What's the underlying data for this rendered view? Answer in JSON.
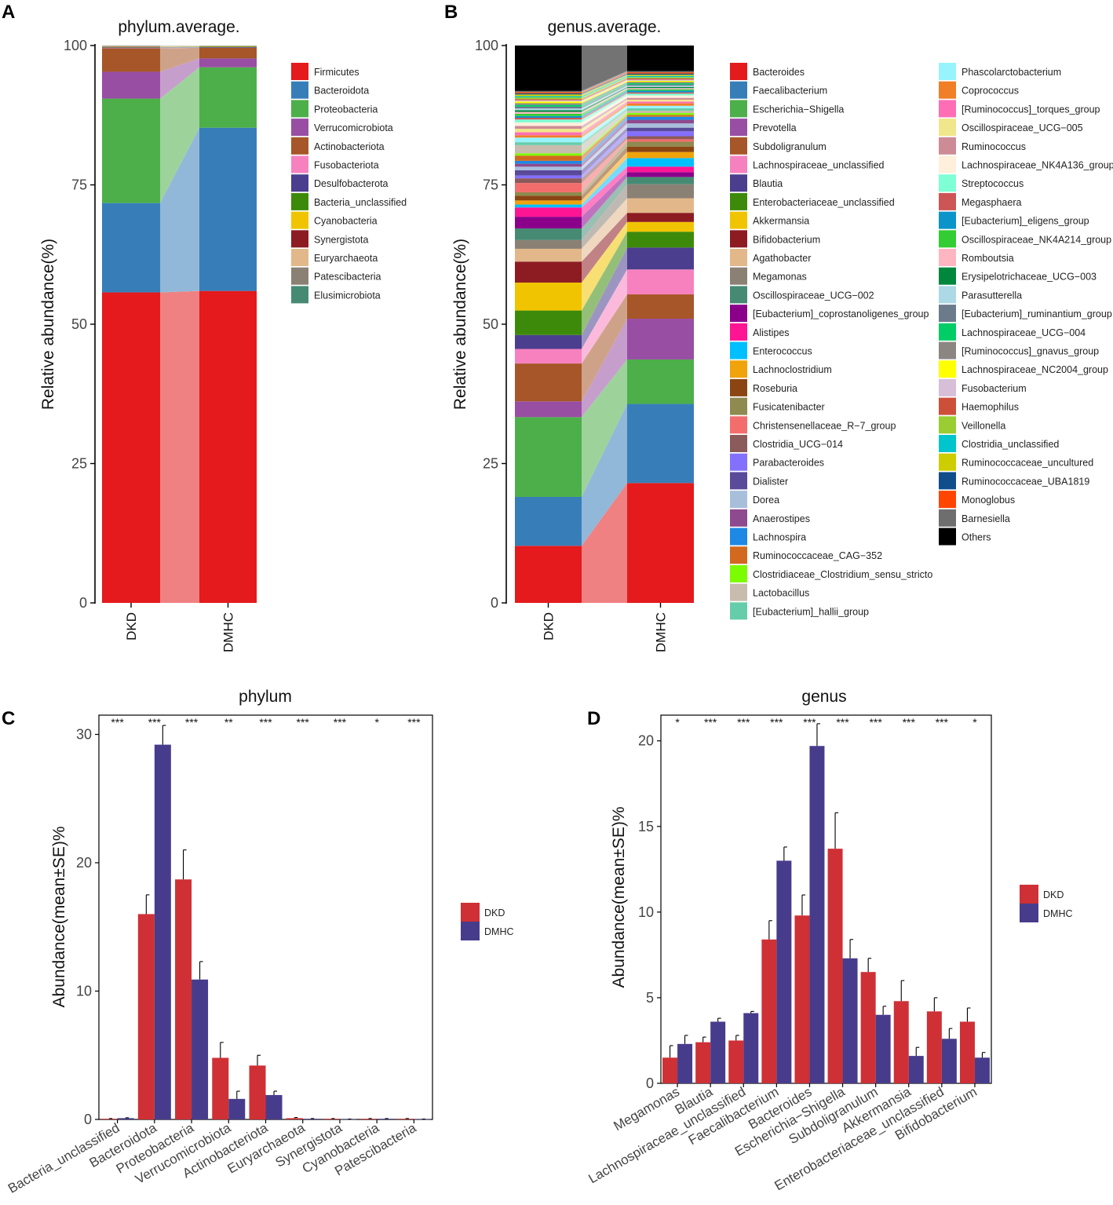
{
  "figure": {
    "panels": [
      "A",
      "B",
      "C",
      "D"
    ],
    "colors": {
      "DKD": "#cf3035",
      "DMHC": "#473c8c",
      "Others": "#000000"
    }
  },
  "chart_data": [
    {
      "panel": "A",
      "type": "bar",
      "subtype": "stacked-100-percent",
      "title": "phylum.average.",
      "ylabel": "Relative abundance(%)",
      "xlabel": "",
      "ylim": [
        0,
        100
      ],
      "yticks": [
        0,
        25,
        50,
        75,
        100
      ],
      "categories": [
        "DKD",
        "DMHC"
      ],
      "series": [
        {
          "name": "Firmicutes",
          "color": "#e41a1c",
          "values": [
            55.6,
            55.8
          ]
        },
        {
          "name": "Bacteroidota",
          "color": "#377eb8",
          "values": [
            16.0,
            29.2
          ]
        },
        {
          "name": "Proteobacteria",
          "color": "#4daf4a",
          "values": [
            18.7,
            10.8
          ]
        },
        {
          "name": "Verrucomicrobiota",
          "color": "#984ea3",
          "values": [
            4.8,
            1.6
          ]
        },
        {
          "name": "Actinobacteriota",
          "color": "#a65628",
          "values": [
            4.2,
            1.9
          ]
        },
        {
          "name": "Fusobacteriota",
          "color": "#f781bf",
          "values": [
            0.05,
            0.02
          ]
        },
        {
          "name": "Desulfobacterota",
          "color": "#4b3e8e",
          "values": [
            0.1,
            0.1
          ]
        },
        {
          "name": "Bacteria_unclassified",
          "color": "#3d8a0a",
          "values": [
            0.05,
            0.1
          ]
        },
        {
          "name": "Cyanobacteria",
          "color": "#f0c400",
          "values": [
            0.05,
            0.05
          ]
        },
        {
          "name": "Synergistota",
          "color": "#8c1c22",
          "values": [
            0.05,
            0.02
          ]
        },
        {
          "name": "Euryarchaeota",
          "color": "#e2b88a",
          "values": [
            0.1,
            0.05
          ]
        },
        {
          "name": "Patescibacteria",
          "color": "#8b8074",
          "values": [
            0.05,
            0.02
          ]
        },
        {
          "name": "Elusimicrobiota",
          "color": "#478a74",
          "values": [
            0.05,
            0.04
          ]
        }
      ]
    },
    {
      "panel": "B",
      "type": "bar",
      "subtype": "stacked-100-percent",
      "title": "genus.average.",
      "ylabel": "Relative abundance(%)",
      "xlabel": "",
      "ylim": [
        0,
        100
      ],
      "yticks": [
        0,
        25,
        50,
        75,
        100
      ],
      "categories": [
        "DKD",
        "DMHC"
      ],
      "series": [
        {
          "name": "Bacteroides",
          "color": "#e41a1c",
          "values": [
            9.8,
            19.7
          ]
        },
        {
          "name": "Faecalibacterium",
          "color": "#377eb8",
          "values": [
            8.4,
            13.0
          ]
        },
        {
          "name": "Escherichia−Shigella",
          "color": "#4daf4a",
          "values": [
            13.7,
            7.3
          ]
        },
        {
          "name": "Prevotella",
          "color": "#984ea3",
          "values": [
            2.7,
            6.7
          ]
        },
        {
          "name": "Subdoligranulum",
          "color": "#a65628",
          "values": [
            6.5,
            4.0
          ]
        },
        {
          "name": "Lachnospiraceae_unclassified",
          "color": "#f781bf",
          "values": [
            2.5,
            4.1
          ]
        },
        {
          "name": "Blautia",
          "color": "#4b3e8e",
          "values": [
            2.4,
            3.6
          ]
        },
        {
          "name": "Enterobacteriaceae_unclassified",
          "color": "#3d8a0a",
          "values": [
            4.2,
            2.6
          ]
        },
        {
          "name": "Akkermansia",
          "color": "#f0c400",
          "values": [
            4.8,
            1.6
          ]
        },
        {
          "name": "Bifidobacterium",
          "color": "#8c1c22",
          "values": [
            3.6,
            1.5
          ]
        },
        {
          "name": "Agathobacter",
          "color": "#e2b88a",
          "values": [
            2.2,
            2.4
          ]
        },
        {
          "name": "Megamonas",
          "color": "#8b8074",
          "values": [
            1.5,
            2.3
          ]
        },
        {
          "name": "Oscillospiraceae_UCG−002",
          "color": "#478a74",
          "values": [
            2.0,
            1.2
          ]
        },
        {
          "name": "[Eubacterium]_coprostanoligenes_group",
          "color": "#8b008b",
          "values": [
            2.0,
            0.8
          ]
        },
        {
          "name": "Alistipes",
          "color": "#ff1493",
          "values": [
            1.6,
            0.9
          ]
        },
        {
          "name": "Enterococcus",
          "color": "#00bfff",
          "values": [
            0.5,
            1.4
          ]
        },
        {
          "name": "Lachnoclostridium",
          "color": "#f0a30a",
          "values": [
            0.7,
            1.0
          ]
        },
        {
          "name": "Roseburia",
          "color": "#8b4513",
          "values": [
            0.8,
            0.9
          ]
        },
        {
          "name": "Fusicatenibacter",
          "color": "#8f8a4f",
          "values": [
            0.6,
            0.8
          ]
        },
        {
          "name": "Christensenellaceae_R−7_group",
          "color": "#f46d6d",
          "values": [
            1.6,
            0.4
          ]
        },
        {
          "name": "Clostridia_UCG−014",
          "color": "#8b5a5a",
          "values": [
            0.8,
            0.5
          ]
        },
        {
          "name": "Parabacteroides",
          "color": "#8470ff",
          "values": [
            0.5,
            0.8
          ]
        },
        {
          "name": "Dialister",
          "color": "#5a4a9a",
          "values": [
            0.9,
            0.6
          ]
        },
        {
          "name": "Dorea",
          "color": "#a8bfdc",
          "values": [
            0.6,
            0.7
          ]
        },
        {
          "name": "Anaerostipes",
          "color": "#8e4a8e",
          "values": [
            0.5,
            0.6
          ]
        },
        {
          "name": "Lachnospira",
          "color": "#1e88e5",
          "values": [
            0.5,
            0.5
          ]
        },
        {
          "name": "Ruminococcaceae_CAG−352",
          "color": "#d2691e",
          "values": [
            0.9,
            0.3
          ]
        },
        {
          "name": "Clostridiaceae_Clostridium_sensu_stricto",
          "color": "#7cfc00",
          "values": [
            0.4,
            0.3
          ]
        },
        {
          "name": "Lactobacillus",
          "color": "#c8bcae",
          "values": [
            1.4,
            0.4
          ]
        },
        {
          "name": "[Eubacterium]_hallii_group",
          "color": "#66cdaa",
          "values": [
            0.5,
            0.4
          ]
        },
        {
          "name": "Phascolarctobacterium",
          "color": "#97f4fc",
          "values": [
            0.8,
            0.4
          ]
        },
        {
          "name": "Coprococcus",
          "color": "#f07f27",
          "values": [
            0.4,
            0.4
          ]
        },
        {
          "name": "[Ruminococcus]_torques_group",
          "color": "#ff6eb4",
          "values": [
            0.5,
            0.3
          ]
        },
        {
          "name": "Oscillospiraceae_UCG−005",
          "color": "#f0e68c",
          "values": [
            0.6,
            0.3
          ]
        },
        {
          "name": "Ruminococcus",
          "color": "#cd8c95",
          "values": [
            0.5,
            0.3
          ]
        },
        {
          "name": "Lachnospiraceae_NK4A136_group",
          "color": "#ffefdb",
          "values": [
            0.6,
            0.4
          ]
        },
        {
          "name": "Streptococcus",
          "color": "#7fffd4",
          "values": [
            0.5,
            0.3
          ]
        },
        {
          "name": "Megasphaera",
          "color": "#cd5555",
          "values": [
            0.3,
            0.2
          ]
        },
        {
          "name": "[Eubacterium]_eligens_group",
          "color": "#0b94c9",
          "values": [
            0.3,
            0.3
          ]
        },
        {
          "name": "Oscillospiraceae_NK4A214_group",
          "color": "#32cd32",
          "values": [
            0.4,
            0.2
          ]
        },
        {
          "name": "Romboutsia",
          "color": "#ffb6c1",
          "values": [
            0.3,
            0.2
          ]
        },
        {
          "name": "Erysipelotrichaceae_UCG−003",
          "color": "#00873e",
          "values": [
            0.3,
            0.2
          ]
        },
        {
          "name": "Parasutterella",
          "color": "#add8e6",
          "values": [
            0.3,
            0.2
          ]
        },
        {
          "name": "[Eubacterium]_ruminantium_group",
          "color": "#6c7b8b",
          "values": [
            0.3,
            0.2
          ]
        },
        {
          "name": "Lachnospiraceae_UCG−004",
          "color": "#00cd66",
          "values": [
            0.3,
            0.2
          ]
        },
        {
          "name": "[Ruminococcus]_gnavus_group",
          "color": "#8b8682",
          "values": [
            0.3,
            0.2
          ]
        },
        {
          "name": "Lachnospiraceae_NC2004_group",
          "color": "#ffff00",
          "values": [
            0.3,
            0.2
          ]
        },
        {
          "name": "Fusobacterium",
          "color": "#d8bfd8",
          "values": [
            0.2,
            0.2
          ]
        },
        {
          "name": "Haemophilus",
          "color": "#cd4f39",
          "values": [
            0.2,
            0.2
          ]
        },
        {
          "name": "Veillonella",
          "color": "#9acd32",
          "values": [
            0.3,
            0.2
          ]
        },
        {
          "name": "Clostridia_unclassified",
          "color": "#00c5cd",
          "values": [
            0.2,
            0.2
          ]
        },
        {
          "name": "Ruminococcaceae_uncultured",
          "color": "#cdcd00",
          "values": [
            0.3,
            0.2
          ]
        },
        {
          "name": "Ruminococcaceae_UBA1819",
          "color": "#104e8b",
          "values": [
            0.2,
            0.2
          ]
        },
        {
          "name": "Monoglobus",
          "color": "#ff4500",
          "values": [
            0.2,
            0.2
          ]
        },
        {
          "name": "Barnesiella",
          "color": "#6e6e6e",
          "values": [
            0.2,
            0.2
          ]
        },
        {
          "name": "Others",
          "color": "#000000",
          "values": [
            7.8,
            4.2
          ]
        }
      ]
    },
    {
      "panel": "C",
      "type": "bar",
      "subtype": "grouped-with-error-bars",
      "title": "phylum",
      "ylabel": "Abundance(mean±SE)%",
      "xlabel": "",
      "ylim": [
        0,
        31.5
      ],
      "yticks": [
        0,
        10,
        20,
        30
      ],
      "categories": [
        "Bacteria_unclassified",
        "Bacteroidota",
        "Proteobacteria",
        "Verrucomicrobiota",
        "Actinobacteriota",
        "Euryarchaeota",
        "Synergistota",
        "Cyanobacteria",
        "Patescibacteria"
      ],
      "significance": [
        "***",
        "***",
        "***",
        "**",
        "***",
        "***",
        "***",
        "*",
        "***"
      ],
      "series": [
        {
          "name": "DKD",
          "color": "#cf3035",
          "values": [
            0.05,
            16.0,
            18.7,
            4.8,
            4.2,
            0.1,
            0.05,
            0.05,
            0.05
          ],
          "se": [
            0.02,
            1.5,
            2.3,
            1.2,
            0.8,
            0.05,
            0.02,
            0.02,
            0.02
          ]
        },
        {
          "name": "DMHC",
          "color": "#473c8c",
          "values": [
            0.1,
            29.2,
            10.9,
            1.6,
            1.9,
            0.05,
            0.02,
            0.05,
            0.02
          ],
          "se": [
            0.03,
            1.5,
            1.4,
            0.6,
            0.3,
            0.02,
            0.01,
            0.02,
            0.01
          ]
        }
      ]
    },
    {
      "panel": "D",
      "type": "bar",
      "subtype": "grouped-with-error-bars",
      "title": "genus",
      "ylabel": "Abundance(mean±SE)%",
      "xlabel": "",
      "ylim": [
        0,
        21.5
      ],
      "yticks": [
        0,
        5,
        10,
        15,
        20
      ],
      "categories": [
        "Megamonas",
        "Blautia",
        "Lachnospiraceae_unclassified",
        "Faecalibacterium",
        "Bacteroides",
        "Escherichia−Shigella",
        "Subdoligranulum",
        "Akkermansia",
        "Enterobacteriaceae_unclassified",
        "Bifidobacterium"
      ],
      "significance": [
        "*",
        "***",
        "***",
        "***",
        "***",
        "***",
        "***",
        "***",
        "***",
        "*"
      ],
      "series": [
        {
          "name": "DKD",
          "color": "#cf3035",
          "values": [
            1.5,
            2.4,
            2.5,
            8.4,
            9.8,
            13.7,
            6.5,
            4.8,
            4.2,
            3.6
          ],
          "se": [
            0.7,
            0.3,
            0.3,
            1.1,
            1.2,
            2.1,
            0.8,
            1.2,
            0.8,
            0.8
          ]
        },
        {
          "name": "DMHC",
          "color": "#473c8c",
          "values": [
            2.3,
            3.6,
            4.1,
            13.0,
            19.7,
            7.3,
            4.0,
            1.6,
            2.6,
            1.5
          ],
          "se": [
            0.5,
            0.2,
            0.1,
            0.8,
            1.3,
            1.1,
            0.5,
            0.5,
            0.6,
            0.3
          ]
        }
      ]
    }
  ]
}
